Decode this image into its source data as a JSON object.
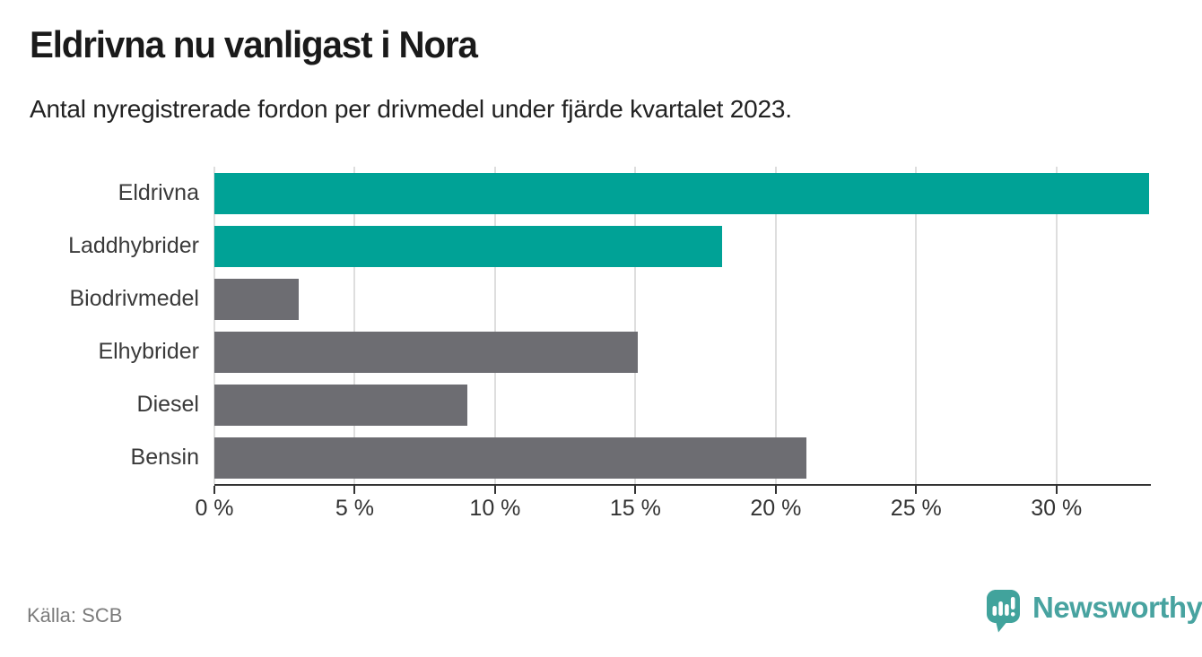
{
  "header": {
    "title": "Eldrivna nu vanligast i Nora",
    "subtitle": "Antal nyregistrerade fordon per drivmedel under fjärde kvartalet 2023."
  },
  "chart_data": {
    "type": "bar",
    "orientation": "horizontal",
    "title": "Eldrivna nu vanligast i Nora",
    "subtitle": "Antal nyregistrerade fordon per drivmedel under fjärde kvartalet 2023.",
    "categories": [
      "Eldrivna",
      "Laddhybrider",
      "Biodrivmedel",
      "Elhybrider",
      "Diesel",
      "Bensin"
    ],
    "values": [
      33.3,
      18.1,
      3.0,
      15.1,
      9.0,
      21.1
    ],
    "unit": "%",
    "bar_colors": [
      "#00a296",
      "#00a296",
      "#6d6d72",
      "#6d6d72",
      "#6d6d72",
      "#6d6d72"
    ],
    "highlight_color": "#00a296",
    "default_color": "#6d6d72",
    "xlabel": "",
    "ylabel": "",
    "xlim": [
      0,
      33.3
    ],
    "x_tick_values": [
      0,
      5,
      10,
      15,
      20,
      25,
      30
    ],
    "x_tick_labels": [
      "0 %",
      "5 %",
      "10 %",
      "15 %",
      "20 %",
      "25 %",
      "30 %"
    ],
    "grid": "vertical",
    "gridline_color": "#dedede",
    "axis_color": "#333333",
    "legend": "none"
  },
  "footer": {
    "source": "Källa: SCB",
    "brand": "Newsworthy",
    "brand_color": "#48a3a0",
    "icon_color": "#41a39c"
  }
}
